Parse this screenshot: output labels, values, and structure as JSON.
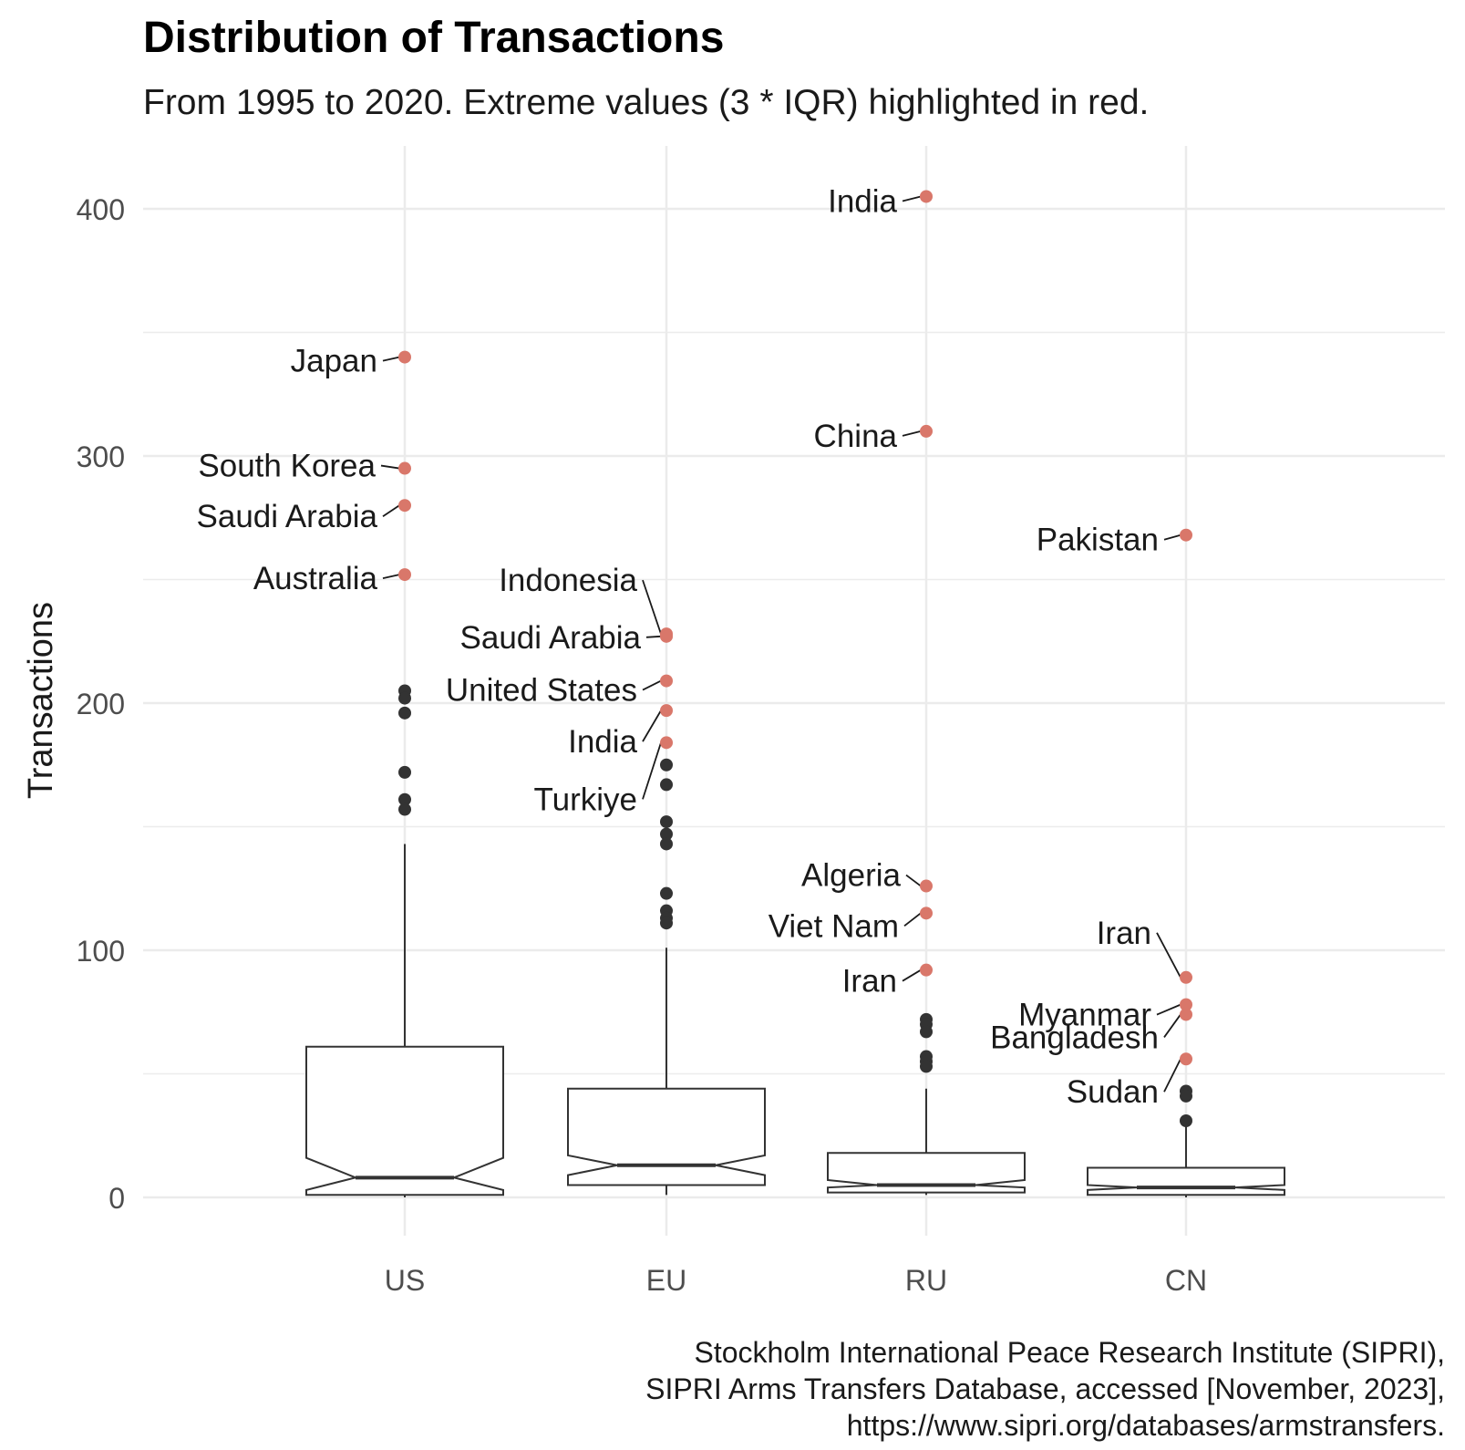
{
  "chart_data": {
    "type": "box",
    "title": "Distribution of Transactions",
    "subtitle": "From 1995 to 2020. Extreme values (3 * IQR) highlighted in red.",
    "xlabel": "",
    "ylabel": "Transactions",
    "ylim": [
      -13,
      418
    ],
    "yticks": [
      0,
      100,
      200,
      300,
      400
    ],
    "categories": [
      "US",
      "EU",
      "RU",
      "CN"
    ],
    "grid": true,
    "extreme_color": "#d9776a",
    "outlier_color": "#333333",
    "boxes": [
      {
        "category": "US",
        "q1": 1,
        "median": 8,
        "q3": 61,
        "notch_low": 3,
        "notch_high": 16,
        "whisker_low": 0,
        "whisker_high": 143
      },
      {
        "category": "EU",
        "q1": 5,
        "median": 13,
        "q3": 44,
        "notch_low": 9,
        "notch_high": 17,
        "whisker_low": 1,
        "whisker_high": 101
      },
      {
        "category": "RU",
        "q1": 2,
        "median": 5,
        "q3": 18,
        "notch_low": 4,
        "notch_high": 7,
        "whisker_low": 1,
        "whisker_high": 44
      },
      {
        "category": "CN",
        "q1": 1,
        "median": 4,
        "q3": 12,
        "notch_low": 3,
        "notch_high": 5,
        "whisker_low": 0,
        "whisker_high": 30
      }
    ],
    "outliers": [
      {
        "category": "US",
        "values": [
          205,
          202,
          196,
          172,
          161,
          157
        ]
      },
      {
        "category": "EU",
        "values": [
          175,
          167,
          152,
          147,
          143,
          123,
          116,
          113,
          111
        ]
      },
      {
        "category": "RU",
        "values": [
          72,
          70,
          67,
          57,
          55,
          53
        ]
      },
      {
        "category": "CN",
        "values": [
          43,
          41,
          31
        ]
      }
    ],
    "extremes": [
      {
        "category": "US",
        "label": "Japan",
        "value": 340
      },
      {
        "category": "US",
        "label": "South Korea",
        "value": 295
      },
      {
        "category": "US",
        "label": "Saudi Arabia",
        "value": 280
      },
      {
        "category": "US",
        "label": "Australia",
        "value": 252
      },
      {
        "category": "EU",
        "label": "Indonesia",
        "value": 228
      },
      {
        "category": "EU",
        "label": "Saudi Arabia",
        "value": 227
      },
      {
        "category": "EU",
        "label": "United States",
        "value": 209
      },
      {
        "category": "EU",
        "label": "India",
        "value": 197
      },
      {
        "category": "EU",
        "label": "Turkiye",
        "value": 184
      },
      {
        "category": "RU",
        "label": "India",
        "value": 405
      },
      {
        "category": "RU",
        "label": "China",
        "value": 310
      },
      {
        "category": "RU",
        "label": "Algeria",
        "value": 126
      },
      {
        "category": "RU",
        "label": "Viet Nam",
        "value": 115
      },
      {
        "category": "RU",
        "label": "Iran",
        "value": 92
      },
      {
        "category": "CN",
        "label": "Pakistan",
        "value": 268
      },
      {
        "category": "CN",
        "label": "Iran",
        "value": 89
      },
      {
        "category": "CN",
        "label": "Myanmar",
        "value": 78
      },
      {
        "category": "CN",
        "label": "Bangladesh",
        "value": 74
      },
      {
        "category": "CN",
        "label": "Sudan",
        "value": 56
      }
    ],
    "caption": [
      "Stockholm International Peace Research Institute (SIPRI),",
      "SIPRI Arms Transfers Database, accessed [November, 2023],",
      "https://www.sipri.org/databases/armstransfers."
    ]
  }
}
